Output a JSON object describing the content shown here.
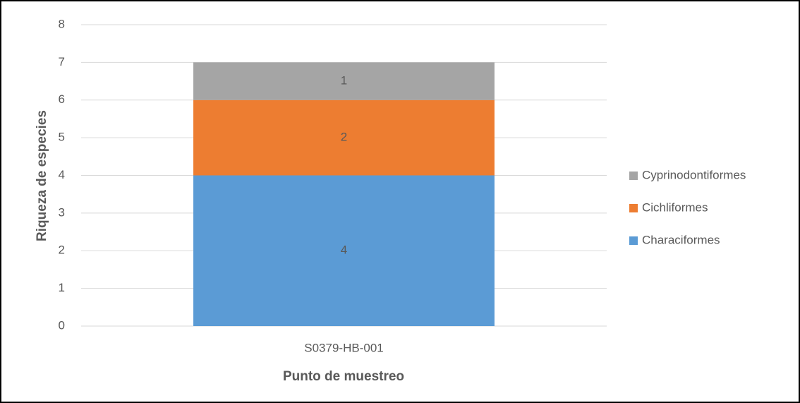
{
  "chart_data": {
    "type": "bar",
    "stacked": true,
    "categories": [
      "S0379-HB-001"
    ],
    "series": [
      {
        "name": "Characiformes",
        "color": "#5b9bd5",
        "values": [
          4
        ]
      },
      {
        "name": "Cichliformes",
        "color": "#ed7d31",
        "values": [
          2
        ]
      },
      {
        "name": "Cyprinodontiformes",
        "color": "#a5a5a5",
        "values": [
          1
        ]
      }
    ],
    "x_label": "Punto de muestreo",
    "y_label": "Riqueza de especies",
    "ylim": [
      0,
      8
    ],
    "yticks": [
      0,
      1,
      2,
      3,
      4,
      5,
      6,
      7,
      8
    ],
    "grid": true,
    "legend": "right"
  }
}
